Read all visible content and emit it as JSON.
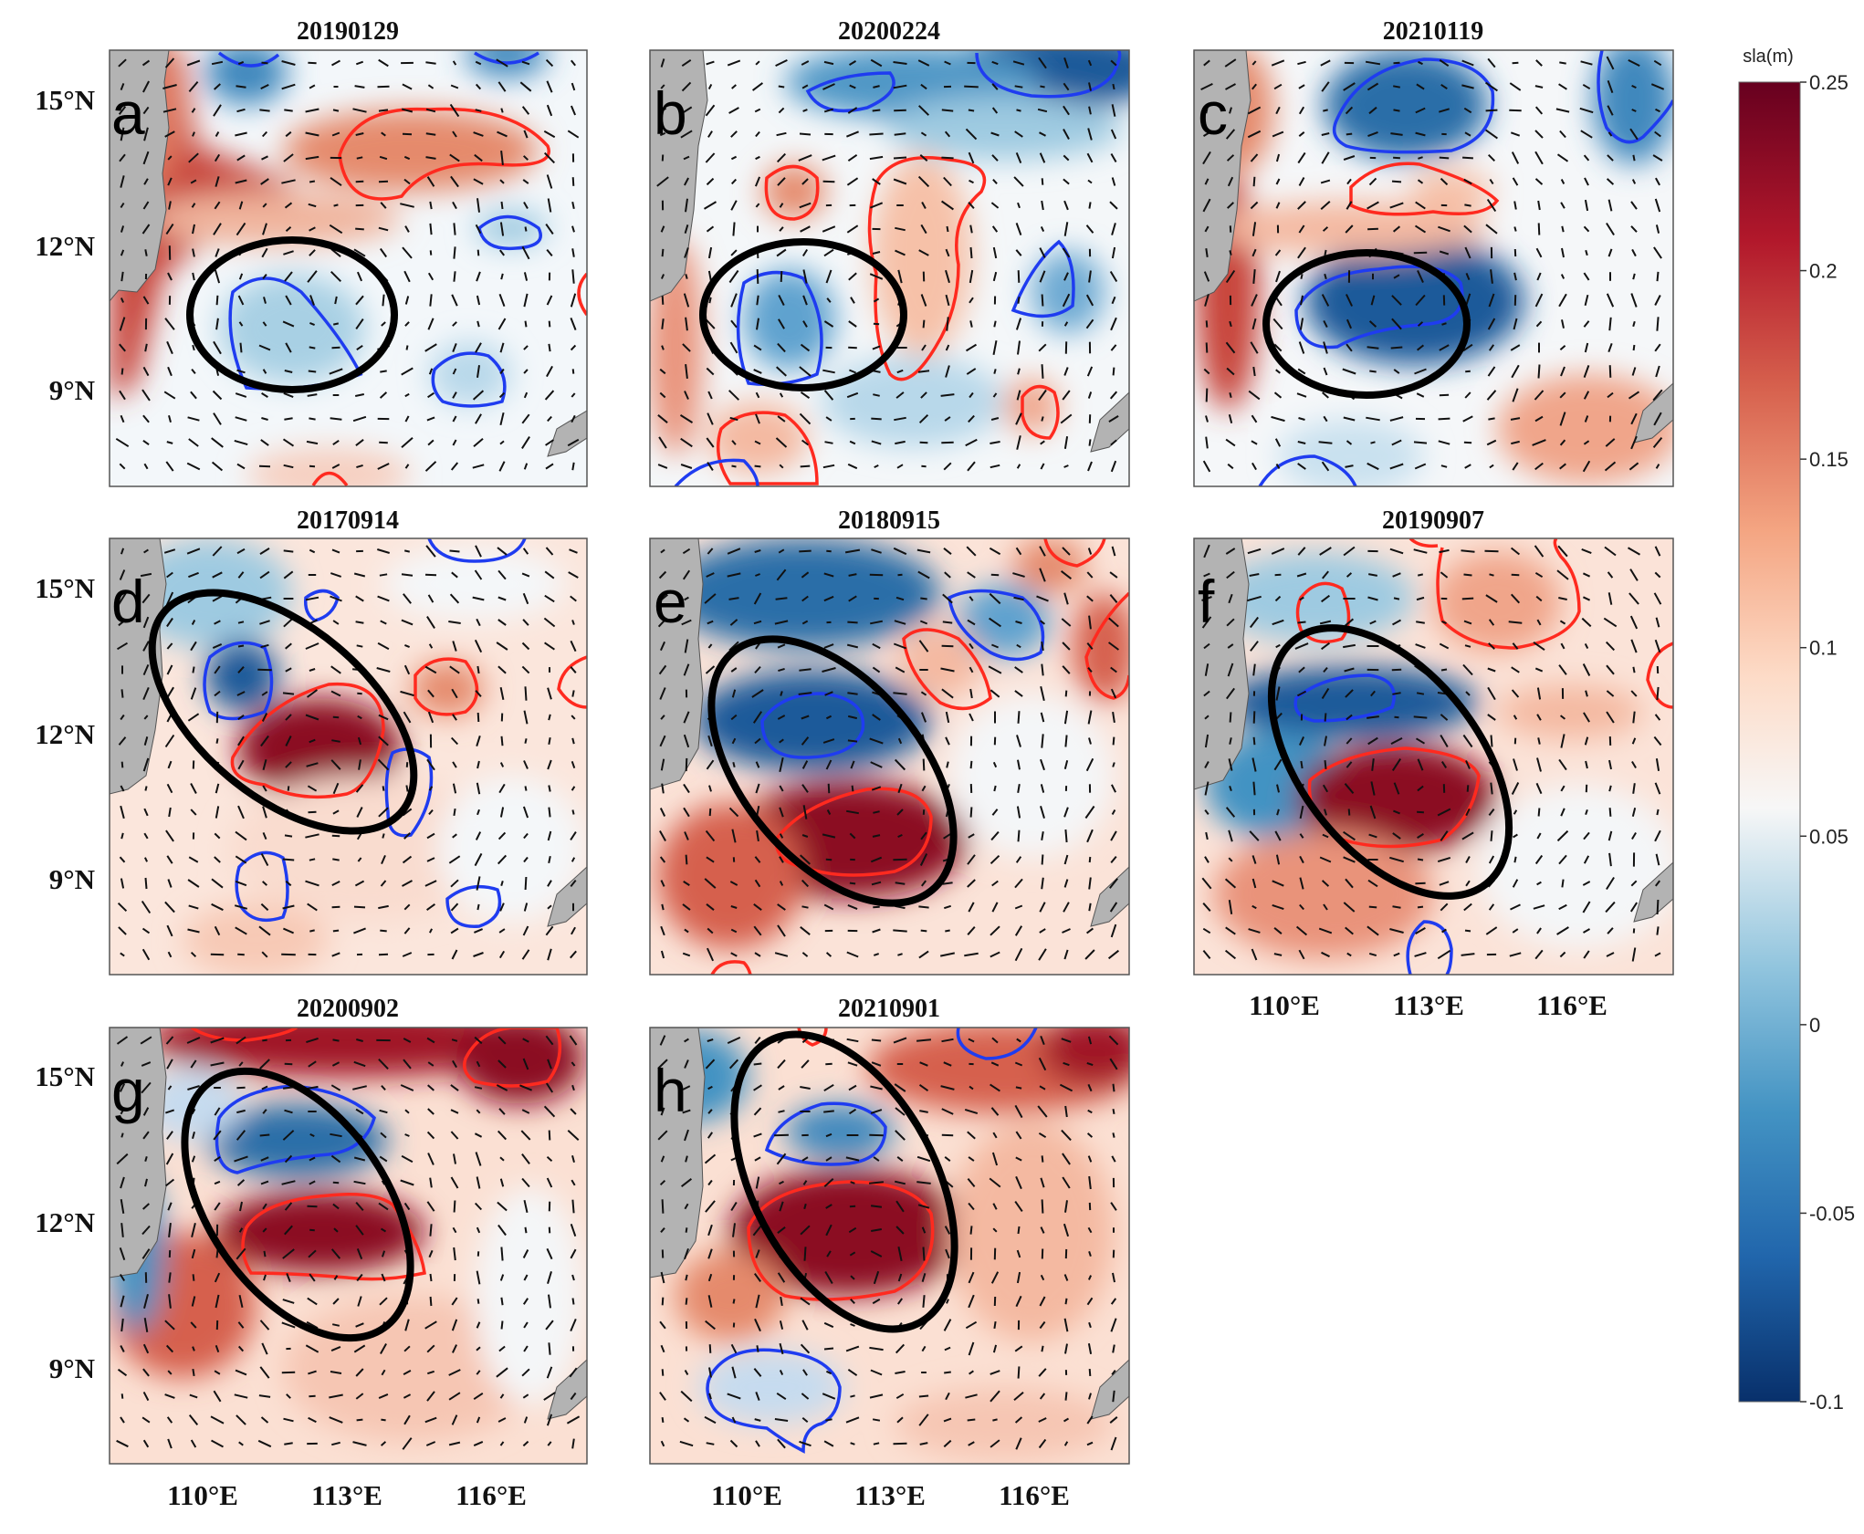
{
  "chart_data": {
    "type": "heatmap",
    "variable": "sla(m)",
    "colorbar": {
      "title": "sla(m)",
      "min": -0.1,
      "max": 0.25,
      "ticks": [
        "0.25",
        "0.2",
        "0.15",
        "0.1",
        "0.05",
        "0",
        "-0.05",
        "-0.1"
      ],
      "colors": [
        "#08306b",
        "#2166ac",
        "#4393c3",
        "#92c5de",
        "#f7f7f7",
        "#fddbc7",
        "#f4a582",
        "#d6604d",
        "#b2182b",
        "#67001f"
      ]
    },
    "lat_ticks": [
      "15°N",
      "12°N",
      "9°N"
    ],
    "lon_ticks": [
      "110°E",
      "113°E",
      "116°E"
    ],
    "lat_range": [
      7,
      16
    ],
    "lon_range": [
      108,
      118
    ],
    "panels": [
      {
        "label": "a",
        "date": "20190129",
        "eddy": "cyclonic"
      },
      {
        "label": "b",
        "date": "20200224",
        "eddy": "cyclonic"
      },
      {
        "label": "c",
        "date": "20210119",
        "eddy": "cyclonic"
      },
      {
        "label": "d",
        "date": "20170914",
        "eddy": "dipole"
      },
      {
        "label": "e",
        "date": "20180915",
        "eddy": "dipole"
      },
      {
        "label": "f",
        "date": "20190907",
        "eddy": "dipole"
      },
      {
        "label": "g",
        "date": "20200902",
        "eddy": "dipole"
      },
      {
        "label": "h",
        "date": "20210901",
        "eddy": "dipole"
      }
    ]
  }
}
